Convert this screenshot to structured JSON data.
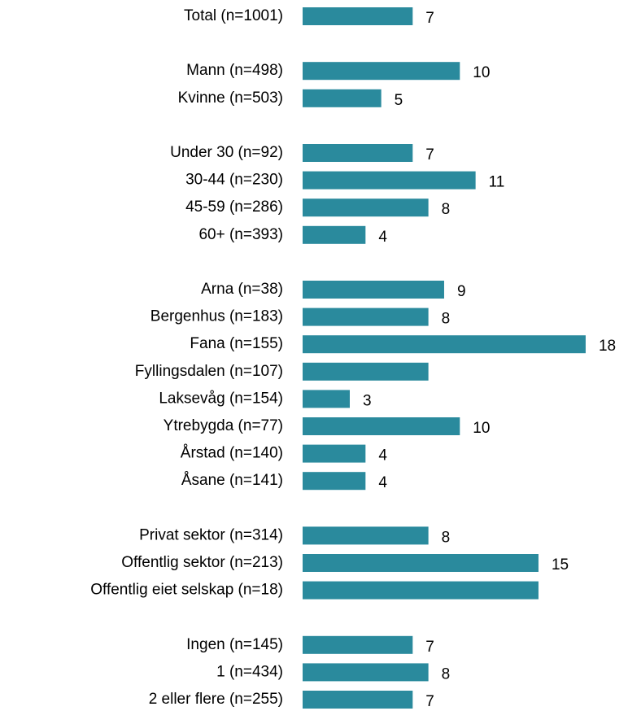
{
  "chart_data": {
    "type": "bar",
    "orientation": "horizontal",
    "color": "#2a8a9d",
    "groups": [
      {
        "categories": [
          "Total (n=1001)"
        ],
        "values": [
          7
        ]
      },
      {
        "categories": [
          "Mann (n=498)",
          "Kvinne (n=503)"
        ],
        "values": [
          10,
          5
        ]
      },
      {
        "categories": [
          "Under 30 (n=92)",
          "30-44 (n=230)",
          "45-59 (n=286)",
          "60+ (n=393)"
        ],
        "values": [
          7,
          11,
          8,
          4
        ]
      },
      {
        "categories": [
          "Arna (n=38)",
          "Bergenhus (n=183)",
          "Fana (n=155)",
          "Fyllingsdalen (n=107)",
          "Laksevåg (n=154)",
          "Ytrebygda (n=77)",
          "Årstad (n=140)",
          "Åsane (n=141)"
        ],
        "values": [
          9,
          8,
          18,
          8,
          3,
          10,
          4,
          4
        ],
        "value_labels": [
          "9",
          "8",
          "18",
          null,
          "3",
          "10",
          "4",
          "4"
        ]
      },
      {
        "categories": [
          "Privat sektor (n=314)",
          "Offentlig sektor (n=213)",
          "Offentlig eiet selskap (n=18)"
        ],
        "values": [
          8,
          15,
          15
        ],
        "value_labels": [
          "8",
          "15",
          null
        ]
      },
      {
        "categories": [
          "Ingen (n=145)",
          "1 (n=434)",
          "2 eller flere (n=255)"
        ],
        "values": [
          7,
          8,
          7
        ]
      }
    ]
  }
}
